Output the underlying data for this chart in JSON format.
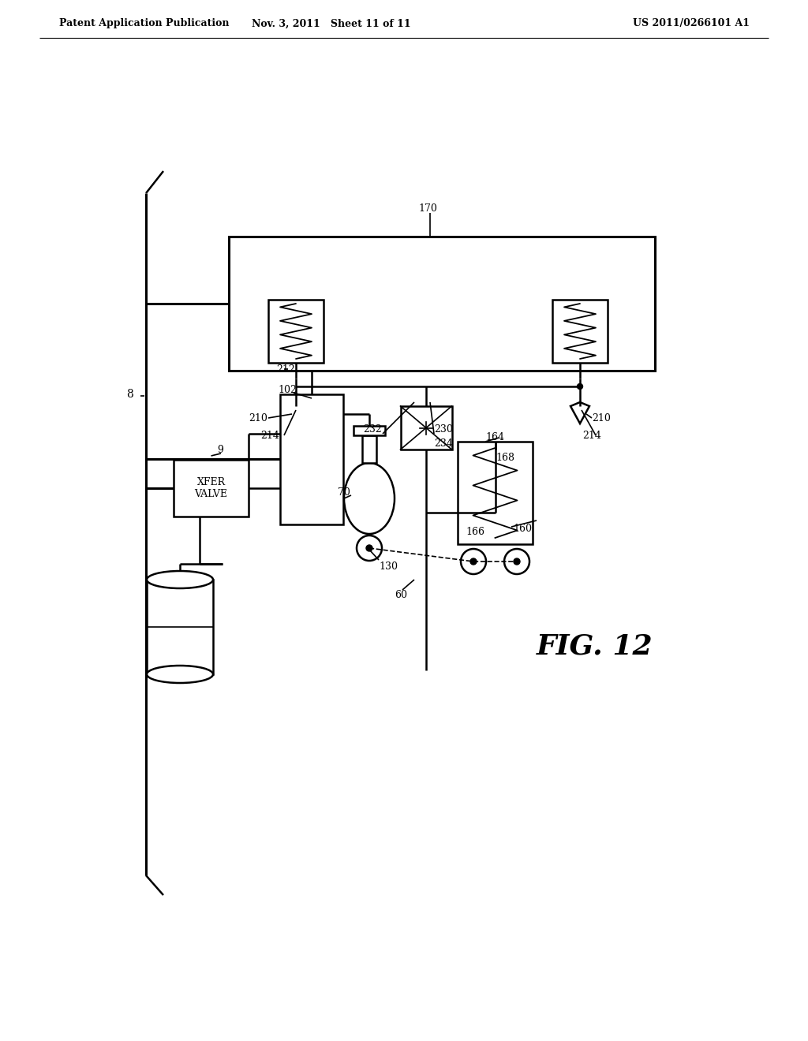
{
  "bg_color": "#ffffff",
  "header_left": "Patent Application Publication",
  "header_mid": "Nov. 3, 2011   Sheet 11 of 11",
  "header_right": "US 2011/0266101 A1",
  "fig_label": "FIG. 12"
}
